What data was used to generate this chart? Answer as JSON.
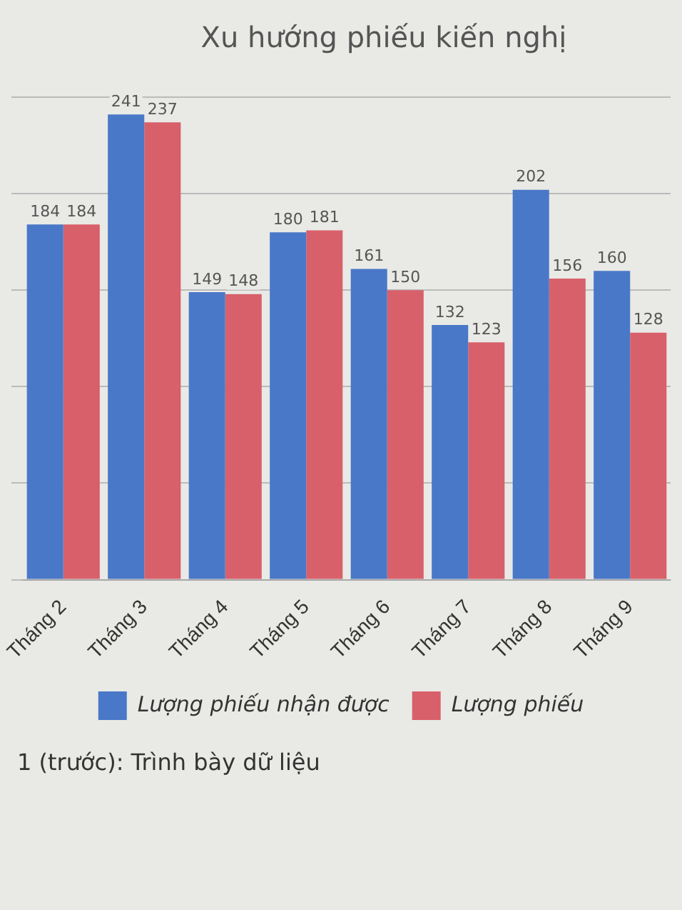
{
  "chart_data": {
    "type": "bar",
    "title": "Xu hướng phiếu kiến nghị",
    "categories": [
      "Tháng 2",
      "Tháng 3",
      "Tháng 4",
      "Tháng 5",
      "Tháng 6",
      "Tháng 7",
      "Tháng 8",
      "Tháng 9"
    ],
    "series": [
      {
        "name": "Lượng phiếu nhận được",
        "color": "#4a78c8",
        "values": [
          184,
          241,
          149,
          180,
          161,
          132,
          202,
          160
        ]
      },
      {
        "name": "Lượng phiếu",
        "color": "#d8606a",
        "values": [
          184,
          237,
          148,
          181,
          150,
          123,
          156,
          128
        ]
      }
    ],
    "data_labels": true,
    "grid": "y",
    "tick_labels": "x",
    "legend": "bottom",
    "annotations": [
      "1 (trước): Trình bày dữ liệu"
    ]
  }
}
